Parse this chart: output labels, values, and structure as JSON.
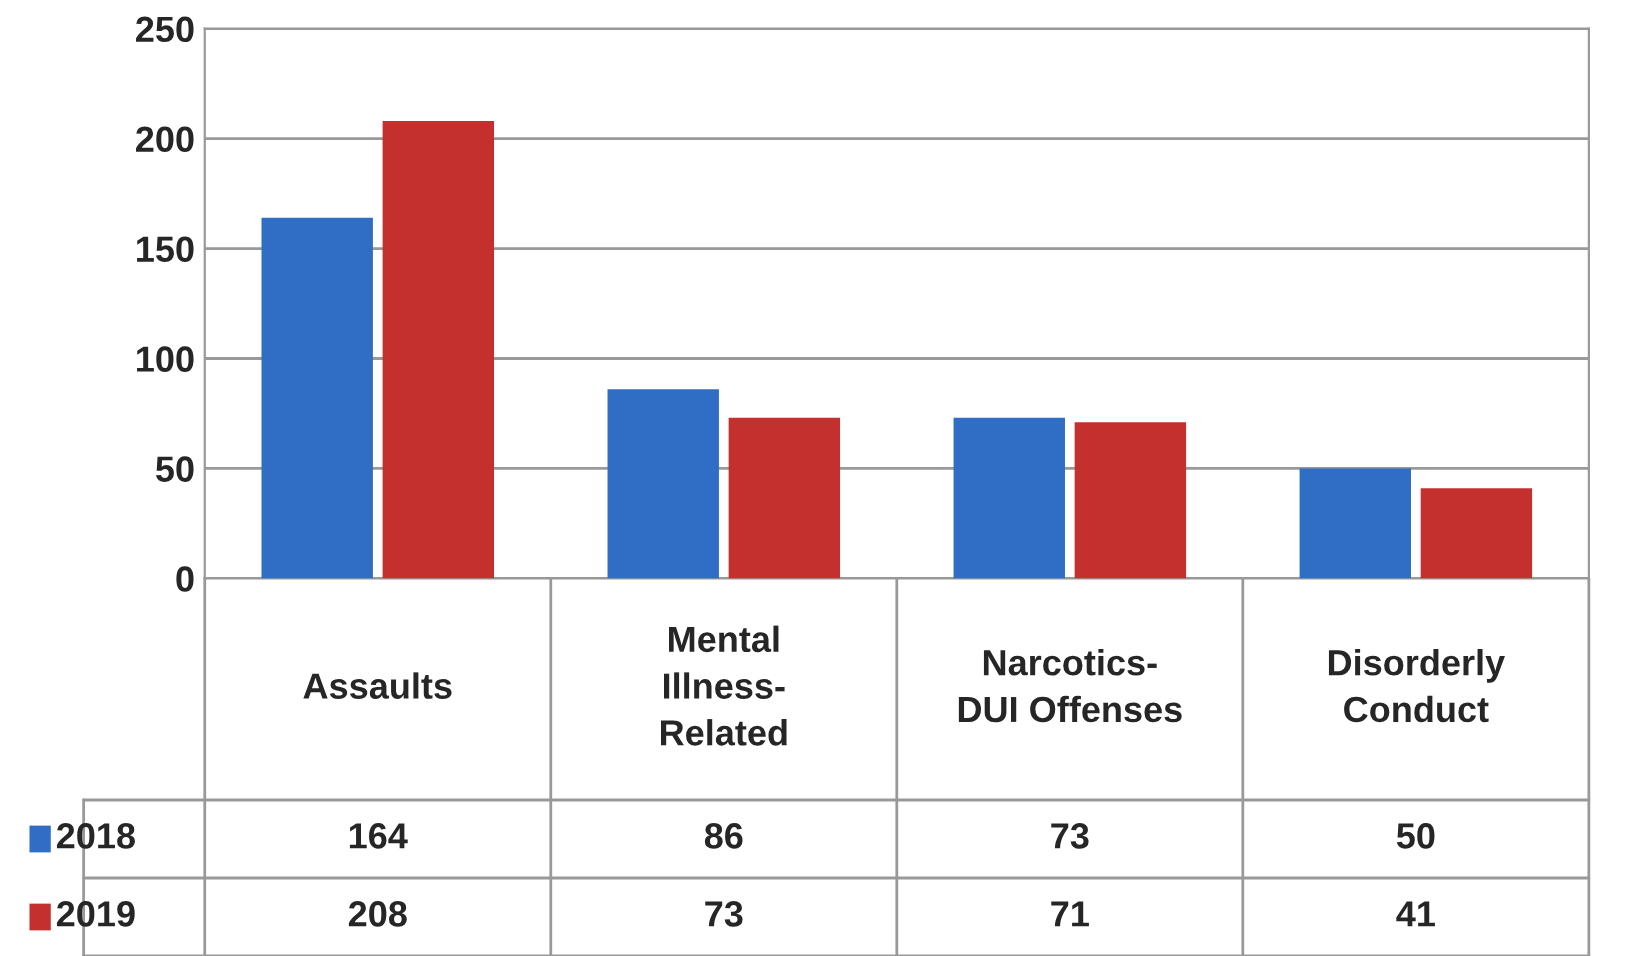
{
  "chart_data": {
    "type": "bar",
    "categories": [
      "Assaults",
      "Mental\nIllness-\nRelated",
      "Narcotics-\nDUI Offenses",
      "Disorderly\nConduct"
    ],
    "series": [
      {
        "name": "2018",
        "color": "#2f6ec4",
        "values": [
          164,
          86,
          73,
          50
        ]
      },
      {
        "name": "2019",
        "color": "#c3302e",
        "values": [
          208,
          73,
          71,
          41
        ]
      }
    ],
    "ylim": [
      0,
      250
    ],
    "yticks": [
      0,
      50,
      100,
      150,
      200,
      250
    ],
    "grid": "y",
    "data_labels": true,
    "legend": "bottom"
  }
}
